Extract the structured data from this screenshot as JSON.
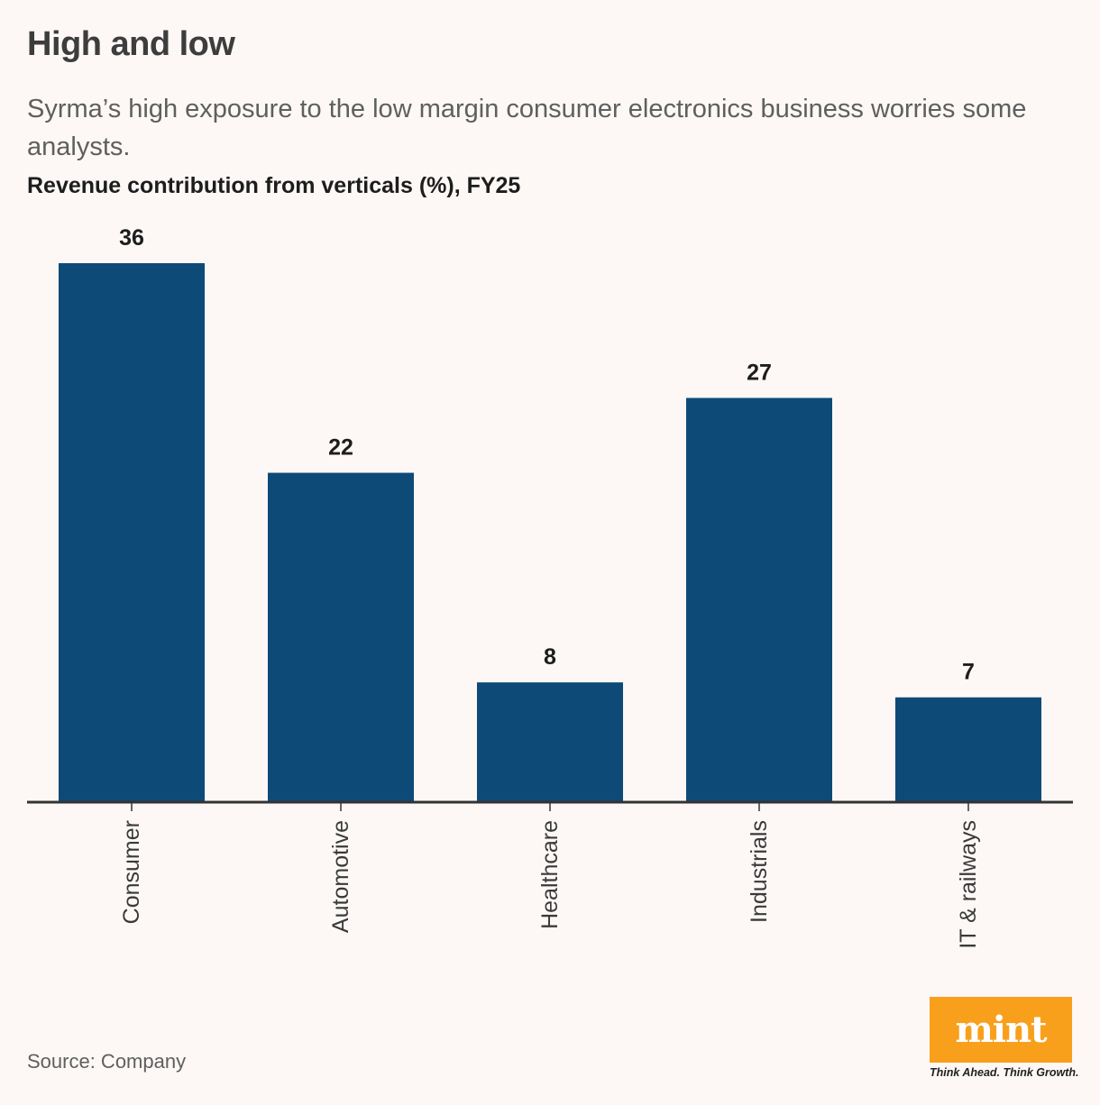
{
  "title": "High and low",
  "subtitle": "Syrma’s high exposure to the low margin consumer electronics business worries some analysts.",
  "source": "Source: Company",
  "logo": {
    "text": "mint",
    "tagline": "Think Ahead. Think Growth.",
    "color": "#f8a01c"
  },
  "colors": {
    "bar": "#0d4a78",
    "axis": "#333333",
    "background": "#fdf8f6"
  },
  "chart_data": {
    "type": "bar",
    "title": "Revenue contribution from verticals (%), FY25",
    "categories": [
      "Consumer",
      "Automotive",
      "Healthcare",
      "Industrials",
      "IT & railways"
    ],
    "values": [
      36,
      22,
      8,
      27,
      7
    ],
    "xlabel": "",
    "ylabel": "",
    "ylim": [
      0,
      36
    ],
    "grid": false,
    "data_labels": true
  }
}
